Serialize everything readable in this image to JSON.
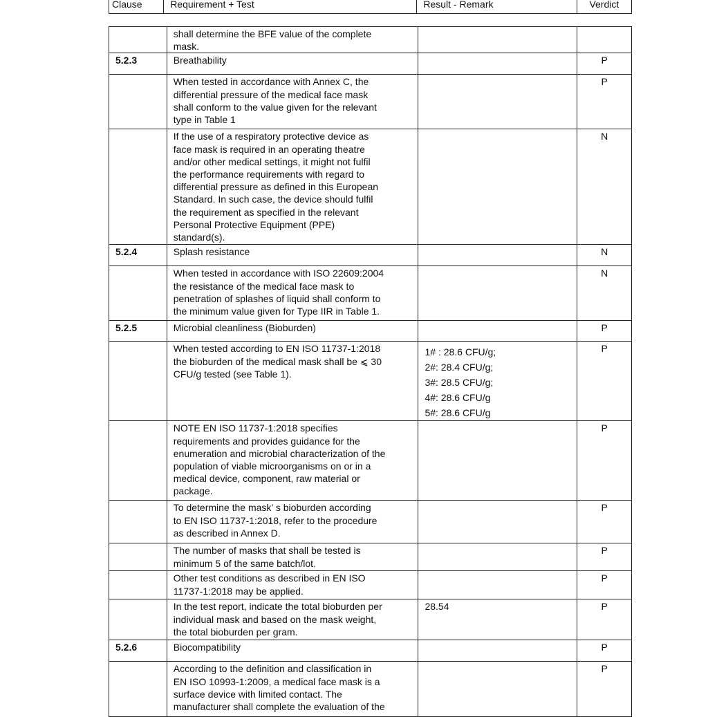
{
  "header": {
    "clause": "Clause",
    "requirement": "Requirement + Test",
    "result": "Result - Remark",
    "verdict": "Verdict"
  },
  "rows": [
    {
      "clause": "",
      "req": [
        "shall determine the BFE value of the complete",
        "mask."
      ],
      "remark": [],
      "verdict": "",
      "h": 38
    },
    {
      "clause": "5.2.3",
      "req": [
        "Breathability"
      ],
      "remark": [],
      "verdict": "P",
      "h": 31
    },
    {
      "clause": "",
      "req": [
        "When tested in accordance with Annex C, the",
        "differential pressure of the medical face mask",
        "shall conform to the value given for the relevant",
        "type in Table 1"
      ],
      "remark": [],
      "verdict": "P",
      "h": 79
    },
    {
      "clause": "",
      "req": [
        "If the use of a respiratory protective device as",
        "face mask is required in an operating theatre",
        "and/or other medical settings, it might not fulfil",
        "the performance requirements with regard to",
        "differential pressure as defined in this European",
        "Standard. In such case, the device should fulfil",
        "the requirement as specified in the relevant",
        "Personal Protective Equipment (PPE)",
        "standard(s)."
      ],
      "remark": [],
      "verdict": "N",
      "h": 167
    },
    {
      "clause": "5.2.4",
      "req": [
        "Splash resistance"
      ],
      "remark": [],
      "verdict": "N",
      "h": 31
    },
    {
      "clause": "",
      "req": [
        "When tested in accordance with ISO 22609:2004",
        "the resistance of the medical face mask to",
        "penetration of splashes of liquid shall conform to",
        "the minimum value given for Type IIR in Table 1."
      ],
      "remark": [],
      "verdict": "N",
      "h": 79
    },
    {
      "clause": "5.2.5",
      "req": [
        "Microbial cleanliness (Bioburden)"
      ],
      "remark": [],
      "verdict": "P",
      "h": 30
    },
    {
      "clause": "",
      "req": [
        "When tested according to EN ISO 11737-1:2018",
        "the bioburden of the medical mask shall be ⩽ 30",
        "CFU/g tested (see Table 1)."
      ],
      "remark": [
        "1# : 28.6 CFU/g;",
        "2#:  28.4 CFU/g;",
        "3#:  28.5 CFU/g;",
        "4#:  28.6 CFU/g",
        "5#:  28.6 CFU/g"
      ],
      "verdict": "P",
      "h": 111
    },
    {
      "clause": "",
      "req": [
        "NOTE EN ISO 11737-1:2018 specifies",
        "requirements and provides guidance for the",
        "enumeration and microbial characterization of the",
        "population of viable microorganisms on or in a",
        "medical device, component, raw material or",
        "package."
      ],
      "remark": [],
      "verdict": "P",
      "h": 115
    },
    {
      "clause": "",
      "req": [
        "To determine the mask’ s bioburden according",
        "to EN ISO 11737-1:2018, refer to the procedure",
        "as described in Annex D."
      ],
      "remark": [],
      "verdict": "P",
      "h": 62
    },
    {
      "clause": "",
      "req": [
        "The number of masks that shall be tested is",
        "minimum 5 of the same batch/lot."
      ],
      "remark": [],
      "verdict": "P",
      "h": 40
    },
    {
      "clause": "",
      "req": [
        "Other test conditions as described in EN ISO",
        "11737-1:2018 may be applied."
      ],
      "remark": [],
      "verdict": "P",
      "h": 41
    },
    {
      "clause": "",
      "req": [
        "In the test report, indicate the total bioburden per",
        "individual mask and based on the mask weight,",
        "the total bioburden per gram."
      ],
      "remark": [
        "28.54"
      ],
      "verdict": "P",
      "h": 59
    },
    {
      "clause": "5.2.6",
      "req": [
        "Biocompatibility"
      ],
      "remark": [],
      "verdict": "P",
      "h": 31
    },
    {
      "clause": "",
      "req": [
        "According to the definition and classification in",
        "EN ISO 10993-1:2009, a medical face mask is a",
        "surface device with limited contact. The",
        "manufacturer shall complete the evaluation of the"
      ],
      "remark": [],
      "verdict": "P",
      "h": 80
    }
  ]
}
